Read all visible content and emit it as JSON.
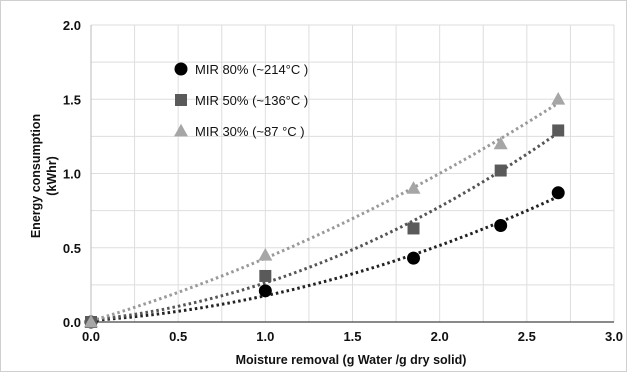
{
  "chart_data": {
    "type": "scatter",
    "title": "",
    "xlabel": "Moisture removal  (g Water /g dry solid)",
    "ylabel_line1": "Energy consumption",
    "ylabel_line2": "(kWhr)",
    "xlim": [
      0,
      3.0
    ],
    "ylim": [
      0,
      2.0
    ],
    "x_ticks": [
      "0.0",
      "0.5",
      "1.0",
      "1.5",
      "2.0",
      "2.5",
      "3.0"
    ],
    "y_ticks": [
      "0.0",
      "0.5",
      "1.0",
      "1.5",
      "2.0"
    ],
    "grid": true,
    "legend_position": "top-left",
    "trendline": "dotted polynomial",
    "series": [
      {
        "name": "MIR 80% (~214°C )",
        "marker": "circle",
        "color": "#000000",
        "line_color": "#222222",
        "x": [
          0.0,
          1.0,
          1.85,
          2.35,
          2.68
        ],
        "y": [
          0.0,
          0.21,
          0.43,
          0.65,
          0.87
        ]
      },
      {
        "name": "MIR 50% (~136°C )",
        "marker": "square",
        "color": "#5a5a5a",
        "line_color": "#555555",
        "x": [
          0.0,
          1.0,
          1.85,
          2.35,
          2.68
        ],
        "y": [
          0.0,
          0.31,
          0.63,
          1.02,
          1.29
        ]
      },
      {
        "name": "MIR 30% (~87 °C )",
        "marker": "triangle",
        "color": "#a6a6a6",
        "line_color": "#9a9a9a",
        "x": [
          0.0,
          1.0,
          1.85,
          2.35,
          2.68
        ],
        "y": [
          0.0,
          0.45,
          0.9,
          1.2,
          1.5
        ]
      }
    ]
  }
}
